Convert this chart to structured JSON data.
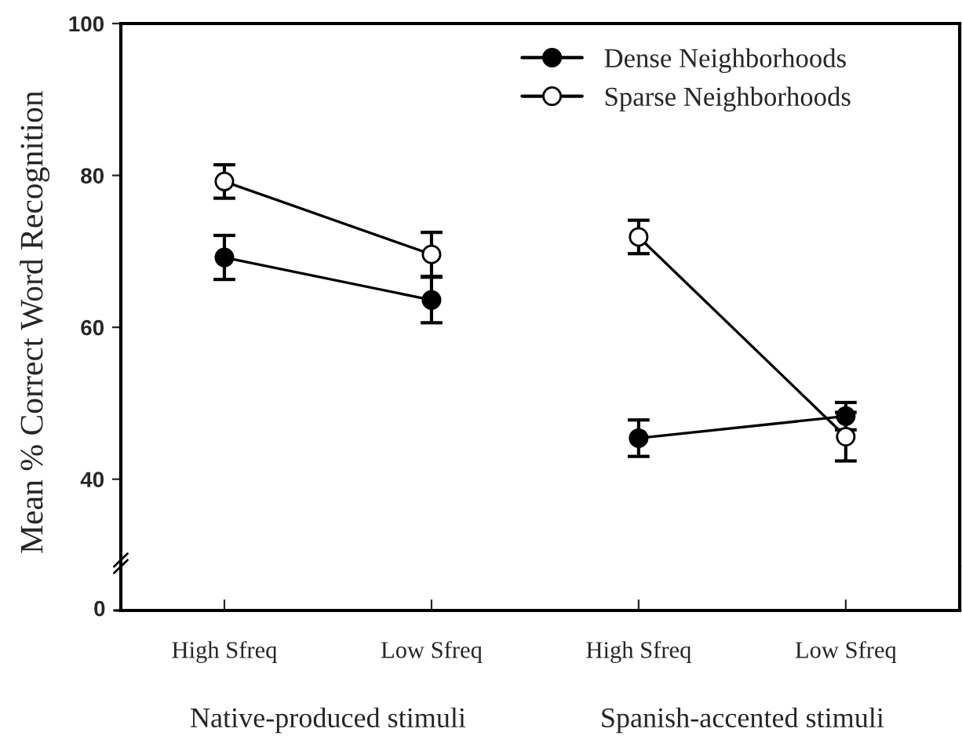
{
  "chart_data": {
    "type": "line",
    "ylabel": "Mean % Correct Word Recognition",
    "categories": [
      "High Sfreq",
      "Low Sfreq",
      "High Sfreq",
      "Low Sfreq"
    ],
    "series": [
      {
        "name": "Dense Neighborhoods",
        "color": "#000000",
        "values": [
          69.2,
          63.6,
          null,
          null
        ],
        "errors": [
          2.9,
          3,
          null,
          null
        ]
      },
      {
        "name": "Sparse Neighborhoods",
        "color": "#ffffff",
        "values": [
          79.2,
          69.6,
          null,
          null
        ],
        "errors": [
          2.2,
          2.9,
          null,
          null
        ]
      },
      {
        "color": "#000000",
        "values": [
          null,
          null,
          45.4,
          48.3
        ],
        "errors": [
          null,
          null,
          2.4,
          1.8
        ]
      },
      {
        "color": "#ffffff",
        "values": [
          null,
          null,
          71.9,
          45.6
        ],
        "errors": [
          null,
          null,
          2.2,
          3.2
        ]
      }
    ],
    "ylim": [
      28.5,
      100
    ],
    "yticks": [
      40,
      60,
      80,
      100
    ],
    "marker": "circle",
    "line_style": "solid",
    "grid": false,
    "legend": "top right",
    "annotations": [
      "0",
      "Native-produced stimuli",
      "Spanish-accented stimuli"
    ]
  }
}
